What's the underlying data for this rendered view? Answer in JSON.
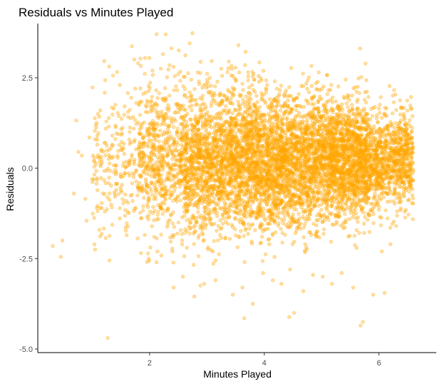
{
  "chart_data": {
    "type": "scatter",
    "title": "Residuals vs Minutes Played",
    "xlabel": "Minutes Played",
    "ylabel": "Residuals",
    "xlim": [
      0.05,
      7.0
    ],
    "ylim": [
      -5.1,
      4.0
    ],
    "x_ticks": [
      2,
      4,
      6
    ],
    "x_tick_labels": [
      "2",
      "4",
      "6"
    ],
    "y_ticks": [
      2.5,
      0,
      -2.5,
      -5
    ],
    "y_tick_labels": [
      "2.5",
      "0.0",
      "-2.5",
      "-5.0"
    ],
    "grid": false,
    "legend": "none",
    "point_color": "#FFA500",
    "point_fill_opacity": 0.35,
    "series": [
      {
        "points": [
          [
            0.31,
            -2.15
          ],
          [
            0.45,
            -2.45
          ],
          [
            0.48,
            -2.0
          ],
          [
            0.68,
            -0.7
          ],
          [
            0.72,
            1.32
          ],
          [
            0.76,
            0.45
          ],
          [
            0.82,
            0.35
          ],
          [
            0.88,
            -0.85
          ],
          [
            0.9,
            -1.45
          ],
          [
            0.95,
            0.85
          ],
          [
            1.0,
            -0.3
          ],
          [
            1.05,
            -2.25
          ],
          [
            1.1,
            1.5
          ],
          [
            1.15,
            0.1
          ],
          [
            1.22,
            -1.2
          ],
          [
            1.27,
            -4.7
          ],
          [
            1.3,
            -2.55
          ],
          [
            1.35,
            0.9
          ],
          [
            1.42,
            -0.6
          ],
          [
            1.48,
            2.3
          ],
          [
            1.55,
            0.55
          ],
          [
            1.6,
            -1.85
          ],
          [
            1.68,
            1.95
          ],
          [
            1.75,
            2.2
          ],
          [
            1.8,
            2.9
          ],
          [
            1.85,
            -2.35
          ],
          [
            1.92,
            3.05
          ],
          [
            2.0,
            0.3
          ],
          [
            2.05,
            2.7
          ],
          [
            2.12,
            -2.6
          ],
          [
            2.2,
            -1.1
          ],
          [
            2.28,
            3.7
          ],
          [
            2.35,
            2.85
          ],
          [
            2.42,
            -3.3
          ],
          [
            2.5,
            2.6
          ],
          [
            2.58,
            -3.0
          ],
          [
            2.65,
            -2.2
          ],
          [
            2.7,
            2.1
          ],
          [
            2.78,
            -3.55
          ],
          [
            2.86,
            2.4
          ],
          [
            2.95,
            -3.2
          ],
          [
            3.05,
            2.5
          ],
          [
            3.15,
            -3.1
          ],
          [
            3.25,
            2.75
          ],
          [
            3.38,
            2.95
          ],
          [
            3.45,
            -3.5
          ],
          [
            3.55,
            3.4
          ],
          [
            3.62,
            -3.3
          ],
          [
            3.65,
            -4.15
          ],
          [
            3.72,
            2.65
          ],
          [
            3.8,
            -3.75
          ],
          [
            3.9,
            2.55
          ],
          [
            3.98,
            -2.9
          ],
          [
            4.05,
            2.3
          ],
          [
            4.15,
            -3.1
          ],
          [
            4.22,
            2.2
          ],
          [
            4.3,
            -3.2
          ],
          [
            4.38,
            2.15
          ],
          [
            4.45,
            -2.8
          ],
          [
            4.52,
            -4.0
          ],
          [
            4.6,
            2.05
          ],
          [
            4.68,
            -3.4
          ],
          [
            4.78,
            2.1
          ],
          [
            4.85,
            -2.95
          ],
          [
            4.95,
            2.65
          ],
          [
            5.02,
            -3.0
          ],
          [
            5.1,
            2.05
          ],
          [
            5.18,
            -3.2
          ],
          [
            5.25,
            1.85
          ],
          [
            5.35,
            -2.9
          ],
          [
            5.45,
            1.95
          ],
          [
            5.55,
            -3.3
          ],
          [
            5.63,
            1.9
          ],
          [
            5.68,
            -4.35
          ],
          [
            5.72,
            -4.25
          ],
          [
            5.8,
            1.5
          ],
          [
            5.9,
            -3.5
          ],
          [
            6.0,
            1.65
          ],
          [
            6.05,
            -2.3
          ],
          [
            6.1,
            -3.45
          ],
          [
            6.15,
            1.1
          ],
          [
            6.2,
            -2.1
          ],
          [
            6.25,
            1.0
          ],
          [
            6.3,
            -1.6
          ],
          [
            6.38,
            0.8
          ],
          [
            6.45,
            -1.2
          ],
          [
            6.5,
            0.4
          ],
          [
            6.55,
            -0.3
          ],
          [
            6.58,
            0.7
          ],
          [
            6.6,
            -0.1
          ]
        ]
      }
    ],
    "density_bands": [
      {
        "x_range": [
          1.0,
          1.8
        ],
        "y_mean": 0.1,
        "y_spread": 1.1,
        "count": 220
      },
      {
        "x_range": [
          1.8,
          2.6
        ],
        "y_mean": 0.2,
        "y_spread": 1.05,
        "count": 620
      },
      {
        "x_range": [
          2.6,
          3.4
        ],
        "y_mean": 0.15,
        "y_spread": 1.0,
        "count": 1100
      },
      {
        "x_range": [
          3.4,
          4.2
        ],
        "y_mean": 0.2,
        "y_spread": 0.95,
        "count": 1350
      },
      {
        "x_range": [
          4.2,
          5.0
        ],
        "y_mean": 0.2,
        "y_spread": 0.9,
        "count": 1300
      },
      {
        "x_range": [
          5.0,
          5.8
        ],
        "y_mean": 0.25,
        "y_spread": 0.8,
        "count": 1450
      },
      {
        "x_range": [
          5.8,
          6.6
        ],
        "y_mean": 0.2,
        "y_spread": 0.65,
        "count": 900
      }
    ]
  }
}
